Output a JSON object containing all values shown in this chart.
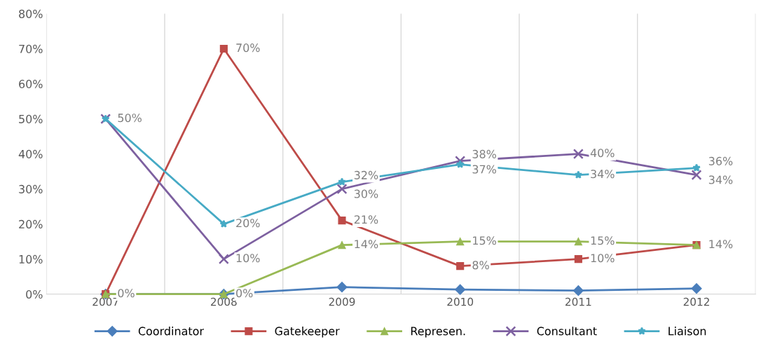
{
  "chart_data": {
    "type": "line",
    "categories": [
      "2007",
      "2008",
      "2009",
      "2010",
      "2011",
      "2012"
    ],
    "ylim": [
      0,
      80
    ],
    "yticks": [
      {
        "value": 0,
        "label": "0%"
      },
      {
        "value": 10,
        "label": "10%"
      },
      {
        "value": 20,
        "label": "20%"
      },
      {
        "value": 30,
        "label": "30%"
      },
      {
        "value": 40,
        "label": "40%"
      },
      {
        "value": 50,
        "label": "50%"
      },
      {
        "value": 60,
        "label": "60%"
      },
      {
        "value": 70,
        "label": "70%"
      },
      {
        "value": 80,
        "label": "80%"
      }
    ],
    "grid": "x",
    "legend": "bottom",
    "series": [
      {
        "name": "Coordinator",
        "color": "#4a7ebb",
        "marker": "diamond",
        "values": [
          0,
          0,
          2,
          1.3,
          1,
          1.6
        ]
      },
      {
        "name": "Gatekeeper",
        "color": "#be4b48",
        "marker": "square",
        "values": [
          0,
          70,
          21,
          8,
          10,
          14
        ],
        "value_labels": [
          "0%",
          "70%",
          "21%",
          "8%",
          "10%",
          "14%"
        ]
      },
      {
        "name": "Represen.",
        "color": "#98b954",
        "marker": "triangle",
        "values": [
          0,
          0,
          14,
          15,
          15,
          14
        ],
        "value_labels": [
          null,
          "0%",
          "14%",
          "15%",
          "15%",
          null
        ]
      },
      {
        "name": "Consultant",
        "color": "#7d60a0",
        "marker": "cross",
        "values": [
          50,
          10,
          30,
          38,
          40,
          34
        ],
        "value_labels": [
          null,
          "10%",
          "30%",
          "38%",
          "40%",
          "34%"
        ]
      },
      {
        "name": "Liaison",
        "color": "#46aac5",
        "marker": "star",
        "values": [
          50,
          20,
          32,
          37,
          34,
          36
        ],
        "value_labels": [
          "50%",
          "20%",
          "32%",
          "37%",
          "34%",
          "36%"
        ]
      }
    ]
  }
}
